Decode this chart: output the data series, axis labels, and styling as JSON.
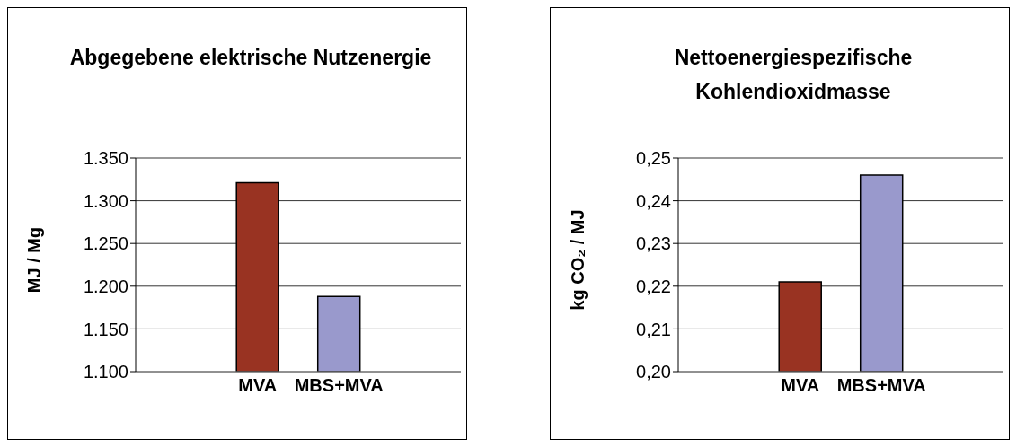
{
  "chart_data": [
    {
      "type": "bar",
      "title": "Abgegebene elektrische Nutzenergie",
      "ylabel": "MJ / Mg",
      "categories": [
        null,
        "MVA",
        "MBS+MVA",
        null
      ],
      "values": [
        null,
        1321,
        1188,
        null
      ],
      "colors": [
        null,
        "#993322",
        "#9999cc",
        null
      ],
      "ylim": [
        1100,
        1350
      ],
      "yticks": [
        {
          "value": 1100,
          "label": "1.100"
        },
        {
          "value": 1150,
          "label": "1.150"
        },
        {
          "value": 1200,
          "label": "1.200"
        },
        {
          "value": 1250,
          "label": "1.250"
        },
        {
          "value": 1300,
          "label": "1.300"
        },
        {
          "value": 1350,
          "label": "1.350"
        }
      ],
      "grid": "y"
    },
    {
      "type": "bar",
      "title": "Nettoenergiespezifische Kohlendioxidmasse",
      "ylabel": "kg CO₂ / MJ",
      "categories": [
        null,
        "MVA",
        "MBS+MVA",
        null
      ],
      "values": [
        null,
        0.221,
        0.246,
        null
      ],
      "colors": [
        null,
        "#993322",
        "#9999cc",
        null
      ],
      "ylim": [
        0.2,
        0.25
      ],
      "yticks": [
        {
          "value": 0.2,
          "label": "0,20"
        },
        {
          "value": 0.21,
          "label": "0,21"
        },
        {
          "value": 0.22,
          "label": "0,22"
        },
        {
          "value": 0.23,
          "label": "0,23"
        },
        {
          "value": 0.24,
          "label": "0,24"
        },
        {
          "value": 0.25,
          "label": "0,25"
        }
      ],
      "grid": "y"
    }
  ]
}
